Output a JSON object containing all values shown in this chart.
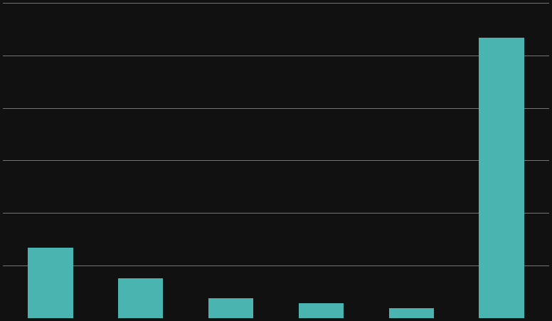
{
  "categories": [
    "",
    "",
    "",
    "",
    "",
    ""
  ],
  "values": [
    82.35,
    47.06,
    23.53,
    17.65,
    11.76,
    329.41
  ],
  "bar_color": "#4ab5b0",
  "background_color": "#111111",
  "grid_color": "#888888",
  "ylim": [
    0,
    370
  ],
  "n_gridlines": 7,
  "bar_width": 0.5,
  "figsize": [
    7.76,
    4.51
  ],
  "dpi": 100
}
